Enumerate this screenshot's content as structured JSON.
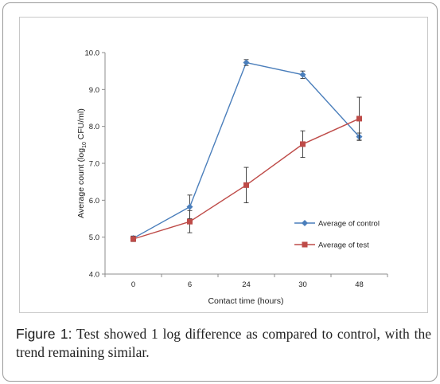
{
  "chart_data": {
    "type": "line",
    "categories": [
      "0",
      "6",
      "24",
      "30",
      "48"
    ],
    "xlabel": "Contact time (hours)",
    "ylabel_main": "Average count (log",
    "ylabel_sub": "10",
    "ylabel_tail": " CFU/ml)",
    "ylim": [
      4.0,
      10.0
    ],
    "yticks": [
      "4.0",
      "5.0",
      "6.0",
      "7.0",
      "8.0",
      "9.0",
      "10.0"
    ],
    "grid": false,
    "legend_position": "right",
    "series": [
      {
        "name": "Average of control",
        "color": "#4a7ebb",
        "marker": "diamond",
        "values": [
          4.97,
          5.82,
          9.73,
          9.4,
          7.72
        ],
        "errors": [
          0.06,
          0.32,
          0.08,
          0.1,
          0.1
        ]
      },
      {
        "name": "Average of test",
        "color": "#be4b48",
        "marker": "square",
        "values": [
          4.95,
          5.42,
          6.41,
          7.52,
          8.21
        ],
        "errors": [
          0.07,
          0.3,
          0.48,
          0.36,
          0.58
        ]
      }
    ]
  },
  "caption": {
    "label": "Figure 1:",
    "text": " Test showed 1 log difference as compared to control, with the trend remaining similar."
  }
}
